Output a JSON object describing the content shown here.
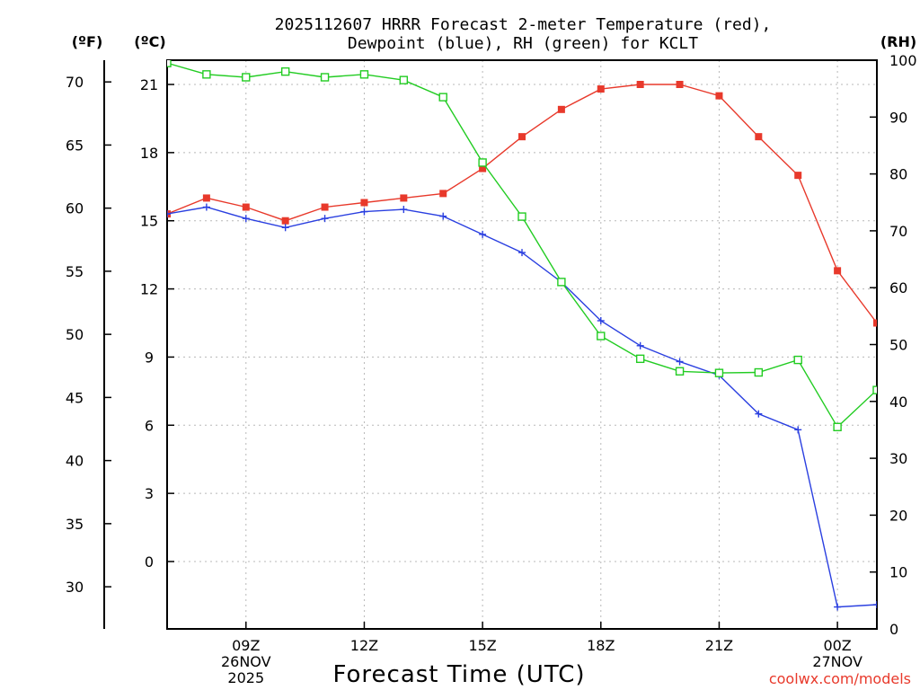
{
  "chart_data": {
    "type": "line",
    "title": [
      "2025112607 HRRR Forecast 2-meter Temperature (red),",
      "Dewpoint (blue), RH (green) for KCLT"
    ],
    "xlabel": "Forecast Time (UTC)",
    "credit": "coolwx.com/models",
    "units": {
      "fahrenheit": "(ºF)",
      "celsius": "(ºC)",
      "rh": "(RH)"
    },
    "x_range": [
      7,
      25
    ],
    "x_ticks": [
      {
        "x": 9,
        "lines": [
          "09Z",
          "26NOV",
          "2025"
        ]
      },
      {
        "x": 12,
        "lines": [
          "12Z"
        ]
      },
      {
        "x": 15,
        "lines": [
          "15Z"
        ]
      },
      {
        "x": 18,
        "lines": [
          "18Z"
        ]
      },
      {
        "x": 21,
        "lines": [
          "21Z"
        ]
      },
      {
        "x": 24,
        "lines": [
          "00Z",
          "27NOV"
        ]
      }
    ],
    "celsius_axis": {
      "ticks": [
        0,
        3,
        6,
        9,
        12,
        15,
        18,
        21
      ]
    },
    "fahrenheit_axis": {
      "ticks": [
        30,
        35,
        40,
        45,
        50,
        55,
        60,
        65,
        70
      ]
    },
    "rh_axis": {
      "range": [
        0,
        100
      ],
      "ticks": [
        0,
        10,
        20,
        30,
        40,
        50,
        60,
        70,
        80,
        90,
        100
      ]
    },
    "series": [
      {
        "name": "Temperature",
        "unit": "C",
        "color": "#e8392b",
        "marker": "filled-square",
        "x": [
          7,
          8,
          9,
          10,
          11,
          12,
          13,
          14,
          15,
          16,
          17,
          18,
          19,
          20,
          21,
          22,
          23,
          24,
          25
        ],
        "values": [
          15.3,
          16.0,
          15.6,
          15.0,
          15.6,
          15.8,
          16.0,
          16.2,
          17.3,
          18.7,
          19.9,
          20.8,
          21.0,
          21.0,
          20.5,
          18.7,
          17.0,
          12.8,
          10.5
        ]
      },
      {
        "name": "Dewpoint",
        "unit": "C",
        "color": "#2a3fe0",
        "marker": "plus",
        "x": [
          7,
          8,
          9,
          10,
          11,
          12,
          13,
          14,
          15,
          16,
          17,
          18,
          19,
          20,
          21,
          22,
          23,
          24,
          25
        ],
        "values": [
          15.3,
          15.6,
          15.1,
          14.7,
          15.1,
          15.4,
          15.5,
          15.2,
          14.4,
          13.6,
          12.3,
          10.6,
          9.5,
          8.8,
          8.2,
          6.5,
          5.8,
          -2.0,
          -1.9
        ]
      },
      {
        "name": "RH",
        "unit": "%",
        "color": "#22cc22",
        "marker": "open-square",
        "x": [
          7,
          8,
          9,
          10,
          11,
          12,
          13,
          14,
          15,
          16,
          17,
          18,
          19,
          20,
          21,
          22,
          23,
          24,
          25
        ],
        "values": [
          99.5,
          97.5,
          97.0,
          98.0,
          97.0,
          97.5,
          96.5,
          93.5,
          82.0,
          72.5,
          61.0,
          51.5,
          47.5,
          45.3,
          45.0,
          45.1,
          47.3,
          35.5,
          42.0
        ]
      }
    ]
  }
}
